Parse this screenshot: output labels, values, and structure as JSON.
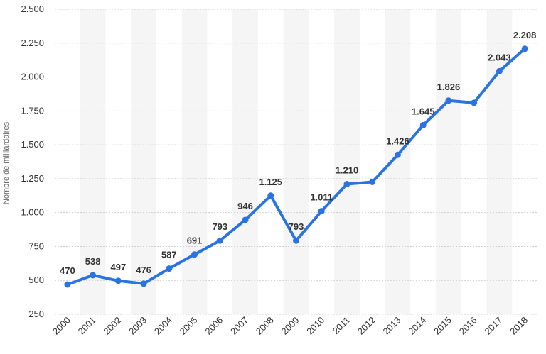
{
  "chart_data": {
    "type": "line",
    "ylabel": "Nombre de milliardaires",
    "ylim": [
      250,
      2500
    ],
    "yticks": [
      "2.500",
      "2.250",
      "2.000",
      "1.750",
      "1.500",
      "1.250",
      "1.000",
      "750",
      "500",
      "250"
    ],
    "categories": [
      "2000",
      "2001",
      "2002",
      "2003",
      "2004",
      "2005",
      "2006",
      "2007",
      "2008",
      "2009",
      "2010",
      "2011",
      "2012",
      "2013",
      "2014",
      "2015",
      "2016",
      "2017",
      "2018"
    ],
    "series": [
      {
        "values": [
          470,
          538,
          497,
          476,
          587,
          691,
          793,
          946,
          1125,
          793,
          1011,
          1210,
          1226,
          1426,
          1645,
          1826,
          1810,
          2043,
          2208
        ],
        "labels": [
          "470",
          "538",
          "497",
          "476",
          "587",
          "691",
          "793",
          "946",
          "1.125",
          "793",
          "1.011",
          "1.210",
          "",
          "1.426",
          "1.645",
          "1.826",
          "",
          "2.043",
          "2.208"
        ],
        "color": "#2a73e2"
      }
    ],
    "grid": true,
    "legend": "none",
    "alternating_band_color": "#f5f5f5"
  }
}
